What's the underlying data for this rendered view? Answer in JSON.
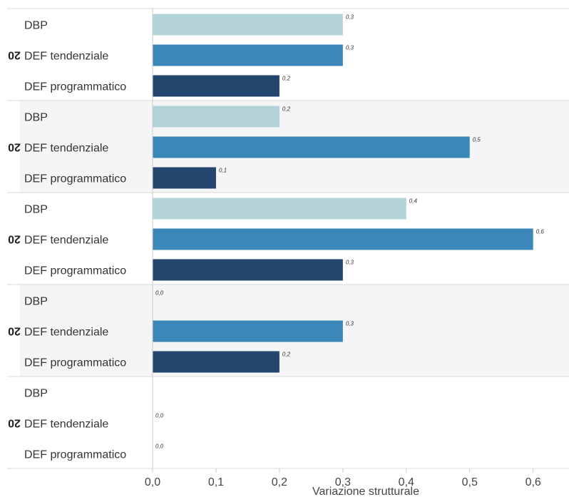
{
  "chart_data": {
    "type": "bar",
    "orientation": "horizontal",
    "xlabel": "Variazione strutturale",
    "xlim": [
      0,
      0.65
    ],
    "xticks": [
      0.0,
      0.1,
      0.2,
      0.3,
      0.4,
      0.5,
      0.6
    ],
    "xtick_labels": [
      "0,0",
      "0,1",
      "0,2",
      "0,3",
      "0,4",
      "0,5",
      "0,6"
    ],
    "decimal_separator": ",",
    "group_labels_note": "rotated year labels, only the truncated text '20' is visible",
    "groups": [
      {
        "label": "20",
        "shaded": false,
        "items": [
          {
            "name": "DBP",
            "value": 0.3,
            "label": "0,3"
          },
          {
            "name": "DEF tendenziale",
            "value": 0.3,
            "label": "0,3"
          },
          {
            "name": "DEF programmatico",
            "value": 0.2,
            "label": "0,2"
          }
        ]
      },
      {
        "label": "20",
        "shaded": true,
        "items": [
          {
            "name": "DBP",
            "value": 0.2,
            "label": "0,2"
          },
          {
            "name": "DEF tendenziale",
            "value": 0.5,
            "label": "0,5"
          },
          {
            "name": "DEF programmatico",
            "value": 0.1,
            "label": "0,1"
          }
        ]
      },
      {
        "label": "20",
        "shaded": false,
        "items": [
          {
            "name": "DBP",
            "value": 0.4,
            "label": "0,4"
          },
          {
            "name": "DEF tendenziale",
            "value": 0.6,
            "label": "0,6"
          },
          {
            "name": "DEF programmatico",
            "value": 0.3,
            "label": "0,3"
          }
        ]
      },
      {
        "label": "20",
        "shaded": true,
        "items": [
          {
            "name": "DBP",
            "value": 0.0,
            "label": "0,0"
          },
          {
            "name": "DEF tendenziale",
            "value": 0.3,
            "label": "0,3"
          },
          {
            "name": "DEF programmatico",
            "value": 0.2,
            "label": "0,2"
          }
        ]
      },
      {
        "label": "20",
        "shaded": false,
        "items": [
          {
            "name": "DBP",
            "value": null,
            "label": ""
          },
          {
            "name": "DEF tendenziale",
            "value": 0.0,
            "label": "0,0"
          },
          {
            "name": "DEF programmatico",
            "value": 0.0,
            "label": "0,0"
          }
        ]
      }
    ],
    "series_colors": {
      "DBP": "#b4d3d9",
      "DEF tendenziale": "#3b87b9",
      "DEF programmatico": "#25466f"
    },
    "group_shade_color": "#f5f5f5",
    "gridlines": false
  }
}
